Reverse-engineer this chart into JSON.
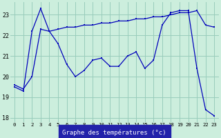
{
  "line1_x": [
    0,
    1,
    2,
    3,
    4,
    5,
    6,
    7,
    8,
    9,
    10,
    11,
    12,
    13,
    14,
    15,
    16,
    17,
    18,
    19,
    20,
    21,
    22,
    23
  ],
  "line1_y": [
    19.5,
    19.3,
    22.2,
    23.3,
    22.2,
    21.6,
    20.6,
    20.0,
    20.3,
    20.8,
    20.9,
    20.5,
    20.5,
    21.0,
    21.2,
    20.4,
    20.8,
    22.5,
    23.1,
    23.2,
    23.2,
    20.4,
    18.4,
    18.1
  ],
  "line2_x": [
    0,
    1,
    2,
    3,
    4,
    5,
    6,
    7,
    8,
    9,
    10,
    11,
    12,
    13,
    14,
    15,
    16,
    17,
    18,
    19,
    20,
    21,
    22,
    23
  ],
  "line2_y": [
    19.6,
    19.4,
    20.0,
    22.3,
    22.2,
    22.3,
    22.4,
    22.4,
    22.5,
    22.5,
    22.6,
    22.6,
    22.7,
    22.7,
    22.8,
    22.8,
    22.9,
    22.9,
    23.0,
    23.1,
    23.1,
    23.2,
    22.5,
    22.4
  ],
  "line_color": "#0000bb",
  "bg_color": "#cceedd",
  "grid_color": "#99ccbb",
  "xlabel": "Graphe des températures (°c)",
  "xlabel_bg": "#2222aa",
  "xlabel_color": "#ffffff",
  "ylim": [
    17.8,
    23.6
  ],
  "xlim": [
    -0.5,
    23.5
  ],
  "yticks": [
    18,
    19,
    20,
    21,
    22,
    23
  ],
  "xticks": [
    0,
    1,
    2,
    3,
    4,
    5,
    6,
    7,
    8,
    9,
    10,
    11,
    12,
    13,
    14,
    15,
    16,
    17,
    18,
    19,
    20,
    21,
    22,
    23
  ]
}
